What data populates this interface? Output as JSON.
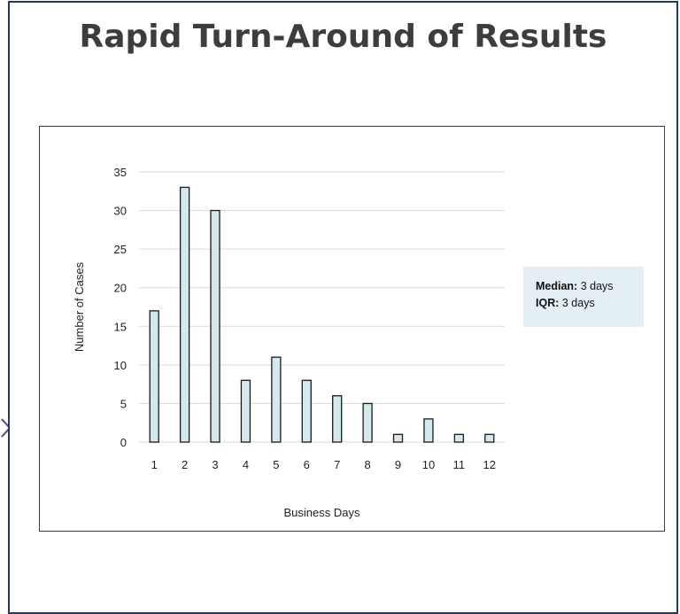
{
  "title": "Rapid Turn-Around of Results",
  "stats": {
    "median_label": "Median:",
    "median_value": " 3 days",
    "iqr_label": "IQR:",
    "iqr_value": " 3 days"
  },
  "colors": {
    "bar_fill": "#d4e8ef",
    "bar_stroke": "#1a1a1a",
    "grid": "#d9d9d9",
    "border": "#1f3864",
    "stats_bg": "#e3eff4"
  },
  "chart_data": {
    "type": "bar",
    "categories": [
      "1",
      "2",
      "3",
      "4",
      "5",
      "6",
      "7",
      "8",
      "9",
      "10",
      "11",
      "12"
    ],
    "values": [
      17,
      33,
      30,
      8,
      11,
      8,
      6,
      5,
      1,
      3,
      1,
      1
    ],
    "xlabel": "Business Days",
    "ylabel": "Number of Cases",
    "ylim": [
      0,
      35
    ],
    "yticks": [
      0,
      5,
      10,
      15,
      20,
      25,
      30,
      35
    ],
    "grid": true,
    "legend": "none"
  }
}
